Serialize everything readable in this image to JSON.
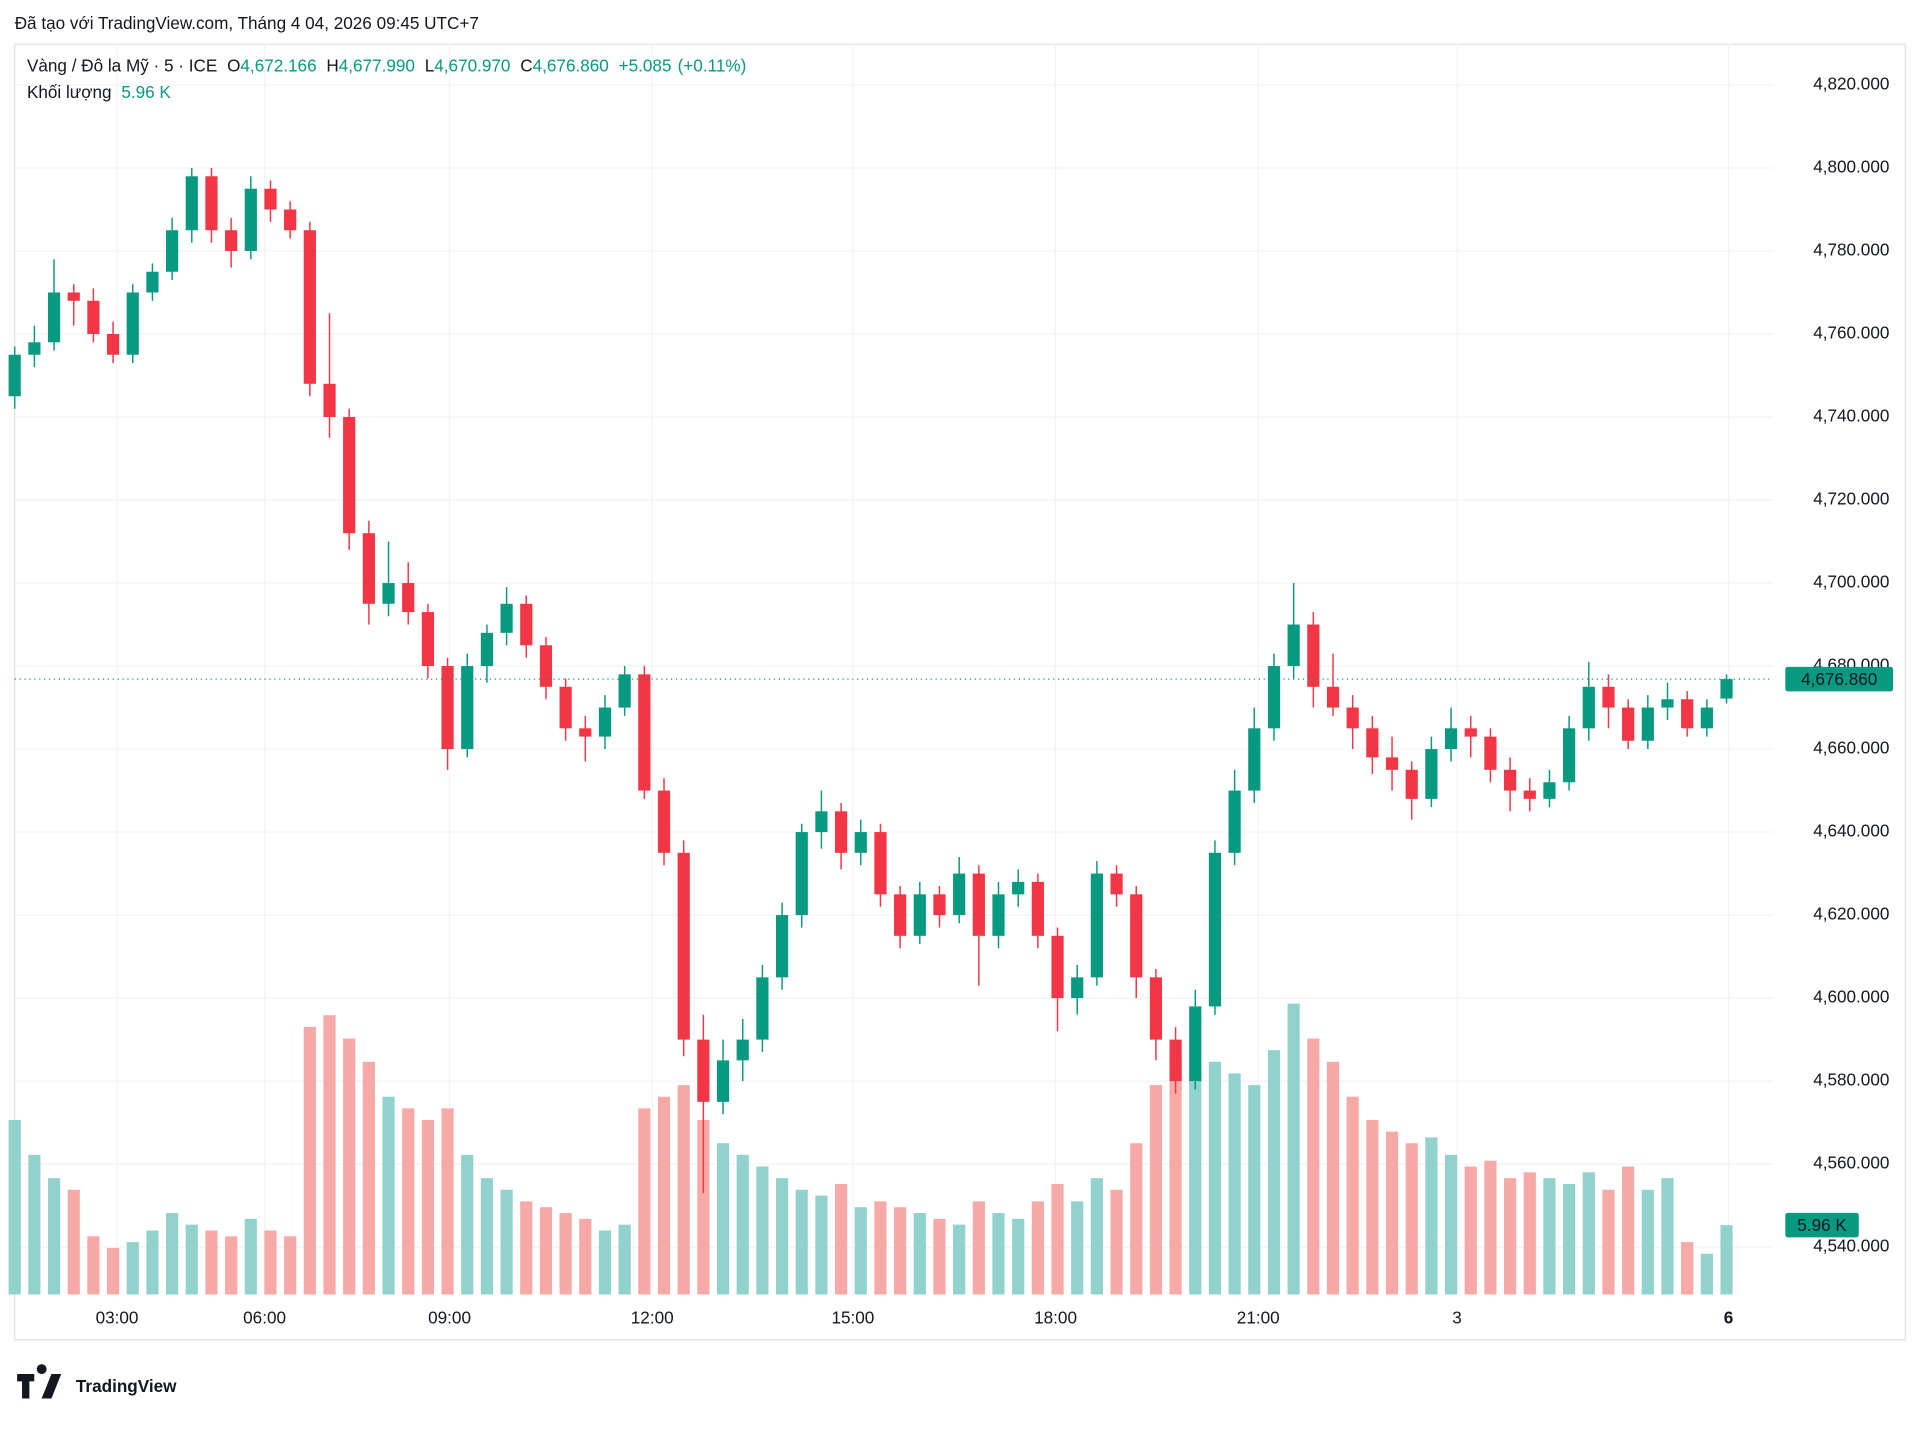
{
  "header": {
    "created": "Đã tạo với TradingView.com, Tháng 4 04, 2026 09:45 UTC+7"
  },
  "chart_data": {
    "type": "candlestick",
    "symbol": "Vàng / Đô la Mỹ · 5 · ICE",
    "ohlc_legend": [
      {
        "key": "O",
        "value": 4672.166,
        "label": "4,672.166"
      },
      {
        "key": "H",
        "value": 4677.99,
        "label": "4,677.990"
      },
      {
        "key": "L",
        "value": 4670.97,
        "label": "4,670.970"
      },
      {
        "key": "C",
        "value": 4676.86,
        "label": "4,676.860"
      }
    ],
    "change": {
      "value": 5.085,
      "label": "+5.085"
    },
    "change_pct": {
      "value": 0.11,
      "label": "(+0.11%)"
    },
    "volume_title": "Khối lượng",
    "volume_last": {
      "value": 5960,
      "label": "5.96 K"
    },
    "last_price": {
      "value": 4676.86,
      "label": "4,676.860"
    },
    "up_color": "#089981",
    "down_color": "#f23645",
    "up_volume_color": "#92d2cc",
    "down_volume_color": "#f7a9a7",
    "ylim": [
      4528.6,
      4830.1
    ],
    "yticks": [
      {
        "value": 4540,
        "label": "4,540.000"
      },
      {
        "value": 4560,
        "label": "4,560.000"
      },
      {
        "value": 4580,
        "label": "4,580.000"
      },
      {
        "value": 4600,
        "label": "4,600.000"
      },
      {
        "value": 4620,
        "label": "4,620.000"
      },
      {
        "value": 4640,
        "label": "4,640.000"
      },
      {
        "value": 4660,
        "label": "4,660.000"
      },
      {
        "value": 4680,
        "label": "4,680.000"
      },
      {
        "value": 4700,
        "label": "4,700.000"
      },
      {
        "value": 4720,
        "label": "4,720.000"
      },
      {
        "value": 4740,
        "label": "4,740.000"
      },
      {
        "value": 4760,
        "label": "4,760.000"
      },
      {
        "value": 4780,
        "label": "4,780.000"
      },
      {
        "value": 4800,
        "label": "4,800.000"
      },
      {
        "value": 4820,
        "label": "4,820.000"
      }
    ],
    "volume_lim": [
      0,
      60000
    ],
    "xticks": [
      {
        "value": 5.2,
        "label": "03:00"
      },
      {
        "value": 12.7,
        "label": "06:00"
      },
      {
        "value": 22.1,
        "label": "09:00"
      },
      {
        "value": 32.4,
        "label": "12:00"
      },
      {
        "value": 42.6,
        "label": "15:00"
      },
      {
        "value": 52.9,
        "label": "18:00"
      },
      {
        "value": 63.2,
        "label": "21:00"
      },
      {
        "value": 73.3,
        "label": "3"
      },
      {
        "value": 87.1,
        "label": "6"
      }
    ],
    "grid": true,
    "candles": [
      [
        4745,
        4757,
        4742,
        4755,
        15000
      ],
      [
        4755,
        4762,
        4752,
        4758,
        12000
      ],
      [
        4758,
        4778,
        4756,
        4770,
        10000
      ],
      [
        4770,
        4772,
        4762,
        4768,
        9000
      ],
      [
        4768,
        4771,
        4758,
        4760,
        5000
      ],
      [
        4760,
        4763,
        4753,
        4755,
        4000
      ],
      [
        4755,
        4772,
        4753,
        4770,
        4500
      ],
      [
        4770,
        4777,
        4768,
        4775,
        5500
      ],
      [
        4775,
        4788,
        4773,
        4785,
        7000
      ],
      [
        4785,
        4800,
        4782,
        4798,
        6000
      ],
      [
        4798,
        4800,
        4782,
        4785,
        5500
      ],
      [
        4785,
        4788,
        4776,
        4780,
        5000
      ],
      [
        4780,
        4798,
        4778,
        4795,
        6500
      ],
      [
        4795,
        4797,
        4787,
        4790,
        5500
      ],
      [
        4790,
        4792,
        4783,
        4785,
        5000
      ],
      [
        4785,
        4787,
        4745,
        4748,
        23000
      ],
      [
        4748,
        4765,
        4735,
        4740,
        24000
      ],
      [
        4740,
        4742,
        4708,
        4712,
        22000
      ],
      [
        4712,
        4715,
        4690,
        4695,
        20000
      ],
      [
        4695,
        4710,
        4692,
        4700,
        17000
      ],
      [
        4700,
        4705,
        4690,
        4693,
        16000
      ],
      [
        4693,
        4695,
        4677,
        4680,
        15000
      ],
      [
        4680,
        4682,
        4655,
        4660,
        16000
      ],
      [
        4660,
        4683,
        4658,
        4680,
        12000
      ],
      [
        4680,
        4690,
        4676,
        4688,
        10000
      ],
      [
        4688,
        4699,
        4685,
        4695,
        9000
      ],
      [
        4695,
        4697,
        4682,
        4685,
        8000
      ],
      [
        4685,
        4687,
        4672,
        4675,
        7500
      ],
      [
        4675,
        4677,
        4662,
        4665,
        7000
      ],
      [
        4665,
        4668,
        4657,
        4663,
        6500
      ],
      [
        4663,
        4673,
        4660,
        4670,
        5500
      ],
      [
        4670,
        4680,
        4668,
        4678,
        6000
      ],
      [
        4678,
        4680,
        4648,
        4650,
        16000
      ],
      [
        4650,
        4653,
        4632,
        4635,
        17000
      ],
      [
        4635,
        4638,
        4586,
        4590,
        18000
      ],
      [
        4590,
        4596,
        4553,
        4575,
        15000
      ],
      [
        4575,
        4590,
        4572,
        4585,
        13000
      ],
      [
        4585,
        4595,
        4580,
        4590,
        12000
      ],
      [
        4590,
        4608,
        4587,
        4605,
        11000
      ],
      [
        4605,
        4623,
        4602,
        4620,
        10000
      ],
      [
        4620,
        4642,
        4617,
        4640,
        9000
      ],
      [
        4640,
        4650,
        4636,
        4645,
        8500
      ],
      [
        4645,
        4647,
        4631,
        4635,
        9500
      ],
      [
        4635,
        4643,
        4632,
        4640,
        7500
      ],
      [
        4640,
        4642,
        4622,
        4625,
        8000
      ],
      [
        4625,
        4627,
        4612,
        4615,
        7500
      ],
      [
        4615,
        4628,
        4613,
        4625,
        7000
      ],
      [
        4625,
        4627,
        4617,
        4620,
        6500
      ],
      [
        4620,
        4634,
        4618,
        4630,
        6000
      ],
      [
        4630,
        4632,
        4603,
        4615,
        8000
      ],
      [
        4615,
        4628,
        4612,
        4625,
        7000
      ],
      [
        4625,
        4631,
        4622,
        4628,
        6500
      ],
      [
        4628,
        4630,
        4612,
        4615,
        8000
      ],
      [
        4615,
        4617,
        4592,
        4600,
        9500
      ],
      [
        4600,
        4608,
        4596,
        4605,
        8000
      ],
      [
        4605,
        4633,
        4603,
        4630,
        10000
      ],
      [
        4630,
        4632,
        4622,
        4625,
        9000
      ],
      [
        4625,
        4627,
        4600,
        4605,
        13000
      ],
      [
        4605,
        4607,
        4585,
        4590,
        18000
      ],
      [
        4590,
        4593,
        4577,
        4580,
        20000
      ],
      [
        4580,
        4602,
        4578,
        4598,
        19000
      ],
      [
        4598,
        4638,
        4596,
        4635,
        20000
      ],
      [
        4635,
        4655,
        4632,
        4650,
        19000
      ],
      [
        4650,
        4670,
        4647,
        4665,
        18000
      ],
      [
        4665,
        4683,
        4662,
        4680,
        21000
      ],
      [
        4680,
        4700,
        4677,
        4690,
        25000
      ],
      [
        4690,
        4693,
        4670,
        4675,
        22000
      ],
      [
        4675,
        4683,
        4668,
        4670,
        20000
      ],
      [
        4670,
        4673,
        4660,
        4665,
        17000
      ],
      [
        4665,
        4668,
        4654,
        4658,
        15000
      ],
      [
        4658,
        4663,
        4650,
        4655,
        14000
      ],
      [
        4655,
        4657,
        4643,
        4648,
        13000
      ],
      [
        4648,
        4663,
        4646,
        4660,
        13500
      ],
      [
        4660,
        4670,
        4657,
        4665,
        12000
      ],
      [
        4665,
        4668,
        4658,
        4663,
        11000
      ],
      [
        4663,
        4665,
        4652,
        4655,
        11500
      ],
      [
        4655,
        4658,
        4645,
        4650,
        10000
      ],
      [
        4650,
        4653,
        4645,
        4648,
        10500
      ],
      [
        4648,
        4655,
        4646,
        4652,
        10000
      ],
      [
        4652,
        4668,
        4650,
        4665,
        9500
      ],
      [
        4665,
        4681,
        4662,
        4675,
        10500
      ],
      [
        4675,
        4678,
        4665,
        4670,
        9000
      ],
      [
        4670,
        4672,
        4660,
        4662,
        11000
      ],
      [
        4662,
        4673,
        4660,
        4670,
        9000
      ],
      [
        4670,
        4676,
        4667,
        4672,
        10000
      ],
      [
        4672,
        4674,
        4663,
        4665,
        4500
      ],
      [
        4665,
        4672,
        4663,
        4670,
        3500
      ],
      [
        4672.166,
        4677.99,
        4670.97,
        4676.86,
        5960
      ]
    ]
  },
  "brand": "TradingView"
}
